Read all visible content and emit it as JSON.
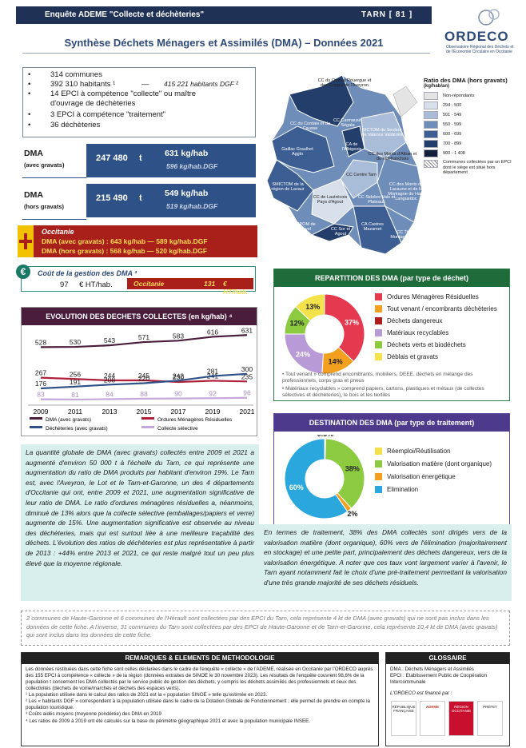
{
  "header": {
    "survey": "Enquête ADEME \"Collecte et déchèteries\"",
    "department": "TARN [ 81 ]",
    "title": "Synthèse Déchets Ménagers et Assimilés (DMA) – Données 2021",
    "logo": "ORDECO",
    "logo_sub": "Observatoire Régional des Déchets et de l'Économie Circulaire en Occitanie"
  },
  "facts": {
    "communes": "314 communes",
    "habitants": "392 310 habitants ¹",
    "dash": "—",
    "habitants_dgf": "415 221 habitants DGF ²",
    "epci_collecte_1": "14 EPCI à compétence \"collecte\" ou maître",
    "epci_collecte_2": "d'ouvrage de déchèteries",
    "epci_traitement": "3 EPCI à compétence \"traitement\"",
    "decheteries": "36 déchèteries"
  },
  "dma": {
    "avec": {
      "label": "DMA",
      "sub": "(avec gravats)",
      "tonnes": "247 480",
      "unit": "t",
      "kg": "631 kg/hab",
      "dgf": "596 kg/hab.DGF"
    },
    "hors": {
      "label": "DMA",
      "sub": "(hors gravats)",
      "tonnes": "215 490",
      "unit": "t",
      "kg": "549 kg/hab",
      "dgf": "519 kg/hab.DGF"
    }
  },
  "occitanie": {
    "title": "Occitanie",
    "line1": "DMA (avec gravats) :  643 kg/hab  —  589 kg/hab.DGF",
    "line2": "DMA (hors gravats) :  568 kg/hab  —  520 kg/hab.DGF"
  },
  "cost": {
    "title": "Coût de la gestion des DMA ³",
    "value": "97",
    "unit": "€ HT/hab.",
    "occ_label": "Occitanie",
    "occ_value": "131",
    "occ_unit": "€ HT/hab."
  },
  "evolution": {
    "title": "EVOLUTION DES DECHETS COLLECTES (en kg/hab) ⁴"
  },
  "map": {
    "legend_title": "Ratio des DMA (hors gravats)",
    "legend_unit": "(kg/hab/an)",
    "legend_items": [
      {
        "label": "Non-répondants",
        "color": "#e4e4e4"
      },
      {
        "label": "294 - 500",
        "color": "#d7dfeb"
      },
      {
        "label": "501 - 549",
        "color": "#a9bcd8"
      },
      {
        "label": "550 - 599",
        "color": "#6f8db9"
      },
      {
        "label": "600 - 699",
        "color": "#3d5e93"
      },
      {
        "label": "700 - 899",
        "color": "#243e6b"
      },
      {
        "label": "900 - 1 408",
        "color": "#121f3a"
      }
    ],
    "legend_note": "Communes collectées par un EPCI dont le siège est situé hors département",
    "labels": [
      "CC du Quercy Rouergue et des Gorges de l'Aveyron",
      "CC du Cordais et du Causse",
      "CC Carmausin Ségala",
      "SICTOM du Secteur de Valence Valdériès",
      "Gaillac Graulhet Agglo",
      "CA de l'Albigeois",
      "CC des Monts d'Alban et du Villefranchois",
      "SMICTOM de la région de Lavaur",
      "CC de Lautrécois Pays d'Agout",
      "CC Centre Tarn",
      "CC Sidobre Vals et Plateaux",
      "CC des Monts de Lacaune et de la Montagne du Haut Languedoc",
      "SIPOM de Revel",
      "CC Sor et Agout",
      "CA Castres Mazamet",
      "CC Thoré Montagne Noire"
    ]
  },
  "repartition": {
    "title": "REPARTITION DES DMA (par type de déchet)",
    "legend": [
      {
        "label": "Ordures Ménagères Résiduelles",
        "color": "#e5394f"
      },
      {
        "label": "Tout venant / encombrants déchèteries",
        "color": "#f2a01d"
      },
      {
        "label": "Déchets dangereux",
        "color": "#b01c1c"
      },
      {
        "label": "Matériaux recyclables",
        "color": "#b79ad6"
      },
      {
        "label": "Déchets verts et biodéchets",
        "color": "#8ccb3f"
      },
      {
        "label": "Déblais et gravats",
        "color": "#f4e24a"
      }
    ],
    "note1": "• Tout venant » comprend encombrants, mobiliers, DEEE, déchets en mélange des professionnels, corps gras et pneus",
    "note2": "• Matériaux recyclables » comprend papiers, cartons, plastiques et métaux (de collectes sélectives et déchèteries), le bois et les textiles"
  },
  "destination": {
    "title": "DESTINATION DES DMA (par type de traitement)",
    "legend": [
      {
        "label": "Réemploi/Réutilisation",
        "color": "#f4e24a"
      },
      {
        "label": "Valorisation matière (dont organique)",
        "color": "#8ccb3f"
      },
      {
        "label": "Valorisation énergétique",
        "color": "#f2a01d"
      },
      {
        "label": "Elimination",
        "color": "#2aa8dd"
      }
    ]
  },
  "chart_data": [
    {
      "type": "line",
      "title": "EVOLUTION DES DECHETS COLLECTES (en kg/hab) ⁴",
      "x": [
        2009,
        2011,
        2013,
        2015,
        2017,
        2019,
        2021
      ],
      "series": [
        {
          "name": "DMA (avec gravats)",
          "color": "#4b1d3c",
          "values": [
            528,
            530,
            543,
            571,
            583,
            616,
            631
          ]
        },
        {
          "name": "Ordures Ménagères Résiduelles",
          "color": "#b0203a",
          "values": [
            267,
            256,
            244,
            245,
            230,
            241,
            235
          ]
        },
        {
          "name": "Déchèteries (avec gravats)",
          "color": "#2e5288",
          "values": [
            176,
            191,
            208,
            220,
            242,
            281,
            300
          ]
        },
        {
          "name": "Collecte sélective",
          "color": "#c5a7d9",
          "values": [
            83,
            81,
            84,
            88,
            90,
            92,
            96
          ]
        }
      ]
    },
    {
      "type": "pie",
      "title": "REPARTITION DES DMA (par type de déchet)",
      "labels": [
        "Ordures Ménagères Résiduelles",
        "Tout venant / encombrants déchèteries",
        "Déchets dangereux",
        "Matériaux recyclables",
        "Déchets verts et biodéchets",
        "Déblais et gravats"
      ],
      "values": [
        37,
        14,
        0,
        24,
        12,
        13
      ],
      "value_labels": [
        "37%",
        "14%",
        "",
        "24%",
        "12%",
        "13%"
      ],
      "colors": [
        "#e5394f",
        "#f2a01d",
        "#b01c1c",
        "#b79ad6",
        "#8ccb3f",
        "#f4e24a"
      ]
    },
    {
      "type": "pie",
      "title": "DESTINATION DES DMA (par type de traitement)",
      "labels": [
        "Réemploi/Réutilisation",
        "Valorisation matière (dont organique)",
        "Valorisation énergétique",
        "Elimination"
      ],
      "values": [
        0.5,
        38,
        2,
        60
      ],
      "value_labels": [
        "0.5%",
        "38%",
        "2%",
        "60%"
      ],
      "colors": [
        "#f4e24a",
        "#8ccb3f",
        "#f2a01d",
        "#2aa8dd"
      ]
    }
  ],
  "text": {
    "para1": "La quantité globale de DMA (avec gravats) collectés entre 2009 et 2021 a augmenté d'environ 50 000 t à l'échelle du Tarn, ce qui représente une augmentation du ratio de DMA produits par habitant d'environ 19%. Le Tarn est, avec l'Aveyron, le Lot et le Tarn-et-Garonne, un des 4 départements d'Occitanie qui ont, entre 2009 et 2021, une augmentation significative de leur ratio de DMA. Le ratio d'ordures ménagères résiduelles a, néanmoins, diminué de 13% alors que la collecte sélective (emballages/papiers et verre) augmente de 15%. Une augmentation significative est observée au niveau des déchèteries, mais qui est surtout liée à une meilleure traçabilité des déchets. L'évolution des ratios de déchèteries est plus représentative à partir de 2013 : +44% entre 2013 et 2021, ce qui reste malgré tout un peu plus élevé que la moyenne régionale.",
    "para2": "En termes de traitement, 38% des DMA collectés sont dirigés vers de la valorisation matière (dont organique), 60% vers de l'élimination (majoritairement en stockage) et une petite part, principalement des déchets dangereux, vers de la valorisation énergétique. A noter que ces taux vont largement varier à l'avenir, le Tarn ayant notamment fait le choix d'une pré-traitement permettant la valorisation d'une très grande majorité de ses déchets résiduels.",
    "note": "2 communes de Haute-Garonne et 6 communes de l'Hérault sont collectées par des EPCI du Tarn, cela représente 4 kt de DMA (avec gravats) qui ne sont pas inclus dans les données de cette fiche. A l'inverse, 31 communes du Tarn sont collectées par des EPCI de Haute-Garonne et de Tarn-et-Garonne, cela représente 10,4 kt de DMA (avec gravats) qui sont inclus dans les données de cette fiche."
  },
  "method": {
    "title": "REMARQUES & ELEMENTS DE METHODOLOGIE",
    "p1": "Les données restituées dans cette fiche sont celles déclarées dans le cadre de l'enquête « collecte » de l'ADEME, réalisée en Occitanie par l'ORDECO auprès des 155 EPCI à compétence « collecte » de la région (données extraites de SINOE le 30 novembre 2023). Les résultats de l'enquête couvrent 98,6% de la population t concernent les DMA collectés par le service public de gestion des déchets, y compris les déchets assimilés des professionnels et ceux des collectivités (déchets de voirie/marchés et déchets des espaces verts).",
    "p2": "¹ La population utilisée dans le calcul des ratios de 2021 est la « population SINOE » telle qu'estimée en 2023.",
    "p3": "² Les « habitants DGF » correspondent à la population utilisée dans le cadre de la Dotation Globale de Fonctionnement ; elle permet de prendre en compte la population touristique.",
    "p4": "³ Coûts aidés moyens (moyenne pondérée) des DMA en 2019",
    "p5": "⁴ Les ratios de 2009 à 2019 ont été calculés sur la base du périmètre géographique 2021 et avec la population municipale INSEE."
  },
  "glossary": {
    "title": "GLOSSAIRE",
    "l1": "DMA : Déchets Ménagers et Assimilés",
    "l2": "EPCI : Etablissement Public de Coopération Intercommunale",
    "partners_label": "L'ORDECO est financé par :",
    "partners": [
      "RÉPUBLIQUE FRANÇAISE",
      "ADEME",
      "RÉGION OCCITANIE",
      "PRÉFET"
    ]
  }
}
